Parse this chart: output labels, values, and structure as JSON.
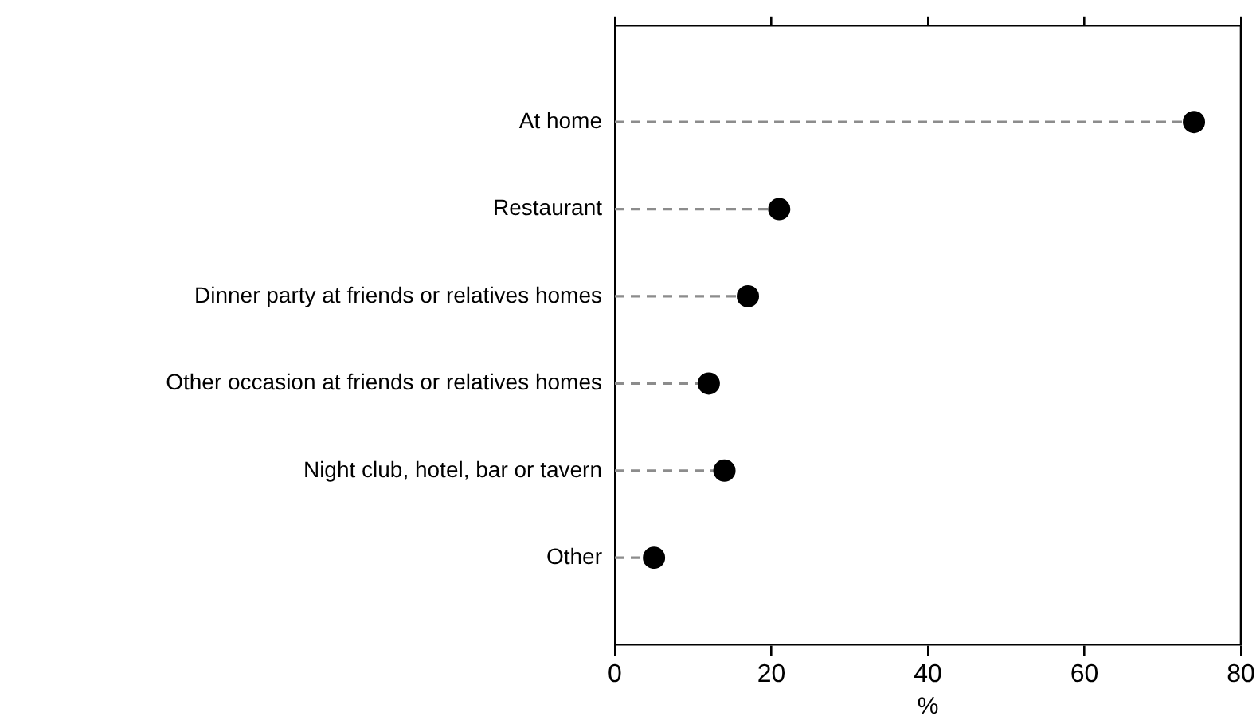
{
  "chart_data": {
    "type": "lollipop",
    "orientation": "horizontal",
    "categories": [
      "At home",
      "Restaurant",
      "Dinner party at friends or relatives homes",
      "Other occasion at friends or relatives homes",
      "Night club, hotel, bar or tavern",
      "Other"
    ],
    "values": [
      74,
      21,
      17,
      12,
      14,
      5
    ],
    "color": "#000000",
    "xlim": [
      0,
      80
    ],
    "xticks": [
      0,
      20,
      40,
      60,
      80
    ],
    "xlabel": "%",
    "marker": "circle",
    "line_style": "dashed",
    "grid": false,
    "legend": false
  }
}
